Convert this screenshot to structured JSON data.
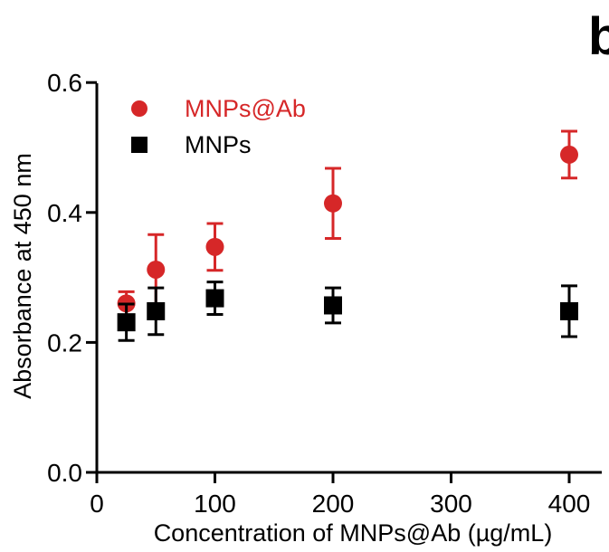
{
  "panel_label": "b",
  "chart_data": {
    "type": "scatter",
    "title": "",
    "xlabel": "Concentration of MNPs@Ab (µg/mL)",
    "ylabel": "Absorbance at 450 nm",
    "xlim": [
      0,
      420
    ],
    "ylim": [
      0.0,
      0.6
    ],
    "xticks": [
      0,
      100,
      200,
      300,
      400
    ],
    "xtick_labels": [
      "0",
      "100",
      "200",
      "300",
      "400"
    ],
    "yticks": [
      0.0,
      0.2,
      0.4,
      0.6
    ],
    "ytick_labels": [
      "0.0",
      "0.2",
      "0.4",
      "0.6"
    ],
    "grid": false,
    "legend_position": "top-left",
    "series": [
      {
        "name": "MNPs@Ab",
        "marker": "circle",
        "color": "#d62728",
        "x": [
          25,
          50,
          100,
          200,
          400
        ],
        "y": [
          0.26,
          0.312,
          0.347,
          0.414,
          0.489
        ],
        "error": [
          0.018,
          0.054,
          0.036,
          0.054,
          0.036
        ]
      },
      {
        "name": "MNPs",
        "marker": "square",
        "color": "#000000",
        "x": [
          25,
          50,
          100,
          200,
          400
        ],
        "y": [
          0.231,
          0.248,
          0.268,
          0.257,
          0.248
        ],
        "error": [
          0.028,
          0.036,
          0.025,
          0.027,
          0.039
        ]
      }
    ]
  }
}
